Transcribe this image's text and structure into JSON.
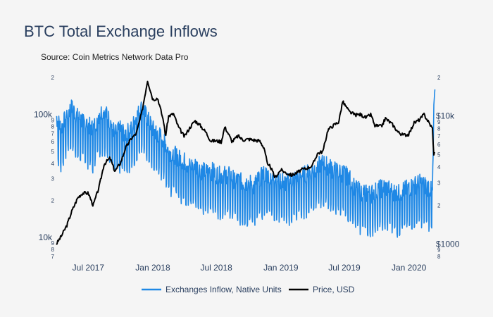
{
  "title": "BTC Total Exchange Inflows",
  "subtitle": "Source: Coin Metrics Network Data Pro",
  "colors": {
    "background": "#f5f5f5",
    "title": "#2a3f5f",
    "inflow": "#1f88e5",
    "price": "#000000"
  },
  "chart_data": {
    "type": "line",
    "x_ticks": [
      "Jul 2017",
      "Jan 2018",
      "Jul 2018",
      "Jan 2019",
      "Jul 2019",
      "Jan 2020"
    ],
    "y_left": {
      "scale": "log",
      "range": [
        7000,
        200000
      ],
      "major_ticks": [
        {
          "value": 10000,
          "label": "10k"
        },
        {
          "value": 100000,
          "label": "100k"
        }
      ],
      "minor_ticks": [
        {
          "value": 7000,
          "label": "7"
        },
        {
          "value": 8000,
          "label": "8"
        },
        {
          "value": 9000,
          "label": "9"
        },
        {
          "value": 20000,
          "label": "2"
        },
        {
          "value": 30000,
          "label": "3"
        },
        {
          "value": 40000,
          "label": "4"
        },
        {
          "value": 50000,
          "label": "5"
        },
        {
          "value": 60000,
          "label": "6"
        },
        {
          "value": 70000,
          "label": "7"
        },
        {
          "value": 80000,
          "label": "8"
        },
        {
          "value": 90000,
          "label": "9"
        },
        {
          "value": 200000,
          "label": "2"
        }
      ]
    },
    "y_right": {
      "scale": "log",
      "range": [
        800,
        20000
      ],
      "major_ticks": [
        {
          "value": 1000,
          "label": "$1000"
        },
        {
          "value": 10000,
          "label": "$10k"
        }
      ],
      "minor_ticks": [
        {
          "value": 800,
          "label": "8"
        },
        {
          "value": 900,
          "label": "9"
        },
        {
          "value": 2000,
          "label": "2"
        },
        {
          "value": 3000,
          "label": "3"
        },
        {
          "value": 4000,
          "label": "4"
        },
        {
          "value": 5000,
          "label": "5"
        },
        {
          "value": 6000,
          "label": "6"
        },
        {
          "value": 7000,
          "label": "7"
        },
        {
          "value": 8000,
          "label": "8"
        },
        {
          "value": 9000,
          "label": "9"
        },
        {
          "value": 20000,
          "label": "2"
        }
      ]
    },
    "series": [
      {
        "name": "Exchanges Inflow, Native Units",
        "axis": "left",
        "points": [
          [
            "2017-04-01",
            75000
          ],
          [
            "2017-04-15",
            60000
          ],
          [
            "2017-05-01",
            80000
          ],
          [
            "2017-05-15",
            90000
          ],
          [
            "2017-06-01",
            75000
          ],
          [
            "2017-06-15",
            70000
          ],
          [
            "2017-07-01",
            65000
          ],
          [
            "2017-07-15",
            60000
          ],
          [
            "2017-08-01",
            80000
          ],
          [
            "2017-08-15",
            85000
          ],
          [
            "2017-09-01",
            70000
          ],
          [
            "2017-09-15",
            55000
          ],
          [
            "2017-10-01",
            60000
          ],
          [
            "2017-10-15",
            55000
          ],
          [
            "2017-11-01",
            60000
          ],
          [
            "2017-11-15",
            75000
          ],
          [
            "2017-12-01",
            90000
          ],
          [
            "2017-12-15",
            75000
          ],
          [
            "2018-01-01",
            60000
          ],
          [
            "2018-01-15",
            55000
          ],
          [
            "2018-02-01",
            50000
          ],
          [
            "2018-02-15",
            40000
          ],
          [
            "2018-03-01",
            38000
          ],
          [
            "2018-03-15",
            35000
          ],
          [
            "2018-04-01",
            33000
          ],
          [
            "2018-04-15",
            30000
          ],
          [
            "2018-05-01",
            31000
          ],
          [
            "2018-05-15",
            28000
          ],
          [
            "2018-06-01",
            27000
          ],
          [
            "2018-06-15",
            28000
          ],
          [
            "2018-07-01",
            26000
          ],
          [
            "2018-07-15",
            25000
          ],
          [
            "2018-08-01",
            26000
          ],
          [
            "2018-08-15",
            24000
          ],
          [
            "2018-09-01",
            23000
          ],
          [
            "2018-09-15",
            22000
          ],
          [
            "2018-10-01",
            22000
          ],
          [
            "2018-10-15",
            21000
          ],
          [
            "2018-11-01",
            24000
          ],
          [
            "2018-11-15",
            26000
          ],
          [
            "2018-12-01",
            25000
          ],
          [
            "2018-12-15",
            24000
          ],
          [
            "2019-01-01",
            23000
          ],
          [
            "2019-01-15",
            22000
          ],
          [
            "2019-02-01",
            23000
          ],
          [
            "2019-02-15",
            24000
          ],
          [
            "2019-03-01",
            25000
          ],
          [
            "2019-03-15",
            26000
          ],
          [
            "2019-04-01",
            28000
          ],
          [
            "2019-04-15",
            30000
          ],
          [
            "2019-05-01",
            32000
          ],
          [
            "2019-05-15",
            30000
          ],
          [
            "2019-06-01",
            28000
          ],
          [
            "2019-06-15",
            27000
          ],
          [
            "2019-07-01",
            26000
          ],
          [
            "2019-07-15",
            24000
          ],
          [
            "2019-08-01",
            20000
          ],
          [
            "2019-08-15",
            19000
          ],
          [
            "2019-09-01",
            18000
          ],
          [
            "2019-09-15",
            18000
          ],
          [
            "2019-10-01",
            19000
          ],
          [
            "2019-10-15",
            20000
          ],
          [
            "2019-11-01",
            20000
          ],
          [
            "2019-11-15",
            19000
          ],
          [
            "2019-12-01",
            18000
          ],
          [
            "2019-12-15",
            19000
          ],
          [
            "2020-01-01",
            20000
          ],
          [
            "2020-01-15",
            21000
          ],
          [
            "2020-02-01",
            22000
          ],
          [
            "2020-02-15",
            21000
          ],
          [
            "2020-03-01",
            20000
          ],
          [
            "2020-03-08",
            18000
          ],
          [
            "2020-03-12",
            120000
          ],
          [
            "2020-03-15",
            160000
          ]
        ]
      },
      {
        "name": "Price, USD",
        "axis": "right",
        "points": [
          [
            "2017-04-01",
            1000
          ],
          [
            "2017-04-15",
            1150
          ],
          [
            "2017-05-01",
            1400
          ],
          [
            "2017-05-15",
            1800
          ],
          [
            "2017-06-01",
            2300
          ],
          [
            "2017-06-15",
            2500
          ],
          [
            "2017-07-01",
            2500
          ],
          [
            "2017-07-15",
            2000
          ],
          [
            "2017-08-01",
            2800
          ],
          [
            "2017-08-15",
            4200
          ],
          [
            "2017-09-01",
            4700
          ],
          [
            "2017-09-15",
            3700
          ],
          [
            "2017-10-01",
            4300
          ],
          [
            "2017-10-15",
            5600
          ],
          [
            "2017-11-01",
            6700
          ],
          [
            "2017-11-15",
            7300
          ],
          [
            "2017-12-01",
            10800
          ],
          [
            "2017-12-17",
            19000
          ],
          [
            "2018-01-01",
            13500
          ],
          [
            "2018-01-15",
            13800
          ],
          [
            "2018-02-01",
            9000
          ],
          [
            "2018-02-06",
            6900
          ],
          [
            "2018-02-15",
            10000
          ],
          [
            "2018-03-01",
            10400
          ],
          [
            "2018-03-15",
            8200
          ],
          [
            "2018-04-01",
            6900
          ],
          [
            "2018-04-15",
            8000
          ],
          [
            "2018-05-01",
            9200
          ],
          [
            "2018-05-15",
            8500
          ],
          [
            "2018-06-01",
            7500
          ],
          [
            "2018-06-15",
            6400
          ],
          [
            "2018-07-01",
            6400
          ],
          [
            "2018-07-15",
            6300
          ],
          [
            "2018-07-25",
            8200
          ],
          [
            "2018-08-01",
            7600
          ],
          [
            "2018-08-15",
            6300
          ],
          [
            "2018-09-01",
            7000
          ],
          [
            "2018-09-15",
            6500
          ],
          [
            "2018-10-01",
            6600
          ],
          [
            "2018-10-15",
            6500
          ],
          [
            "2018-11-01",
            6400
          ],
          [
            "2018-11-15",
            5600
          ],
          [
            "2018-11-25",
            4000
          ],
          [
            "2018-12-01",
            4100
          ],
          [
            "2018-12-15",
            3300
          ],
          [
            "2019-01-01",
            3800
          ],
          [
            "2019-01-15",
            3600
          ],
          [
            "2019-02-01",
            3450
          ],
          [
            "2019-02-15",
            3600
          ],
          [
            "2019-03-01",
            3800
          ],
          [
            "2019-03-15",
            3900
          ],
          [
            "2019-04-01",
            4100
          ],
          [
            "2019-04-15",
            5100
          ],
          [
            "2019-05-01",
            5300
          ],
          [
            "2019-05-15",
            7800
          ],
          [
            "2019-06-01",
            8500
          ],
          [
            "2019-06-15",
            9000
          ],
          [
            "2019-06-26",
            13000
          ],
          [
            "2019-07-15",
            10800
          ],
          [
            "2019-08-01",
            10200
          ],
          [
            "2019-08-15",
            10300
          ],
          [
            "2019-09-01",
            9700
          ],
          [
            "2019-09-15",
            10300
          ],
          [
            "2019-09-25",
            8400
          ],
          [
            "2019-10-15",
            8300
          ],
          [
            "2019-10-26",
            9600
          ],
          [
            "2019-11-15",
            8600
          ],
          [
            "2019-12-01",
            7500
          ],
          [
            "2019-12-15",
            7100
          ],
          [
            "2020-01-01",
            7200
          ],
          [
            "2020-01-15",
            8800
          ],
          [
            "2020-02-01",
            9400
          ],
          [
            "2020-02-13",
            10300
          ],
          [
            "2020-03-01",
            8600
          ],
          [
            "2020-03-08",
            8000
          ],
          [
            "2020-03-12",
            4900
          ],
          [
            "2020-03-15",
            5300
          ]
        ]
      }
    ],
    "legend": [
      "Exchanges Inflow, Native Units",
      "Price, USD"
    ],
    "legend_position": "bottom"
  }
}
